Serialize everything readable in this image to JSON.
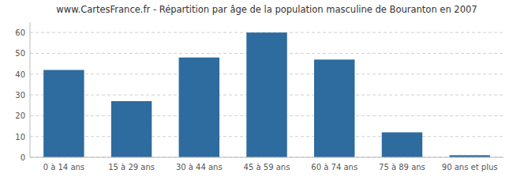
{
  "chart_data": {
    "type": "bar",
    "title": "www.CartesFrance.fr - Répartition par âge de la population masculine de Bouranton en 2007",
    "categories": [
      "0 à 14 ans",
      "15 à 29 ans",
      "30 à 44 ans",
      "45 à 59 ans",
      "60 à 74 ans",
      "75 à 89 ans",
      "90 ans et plus"
    ],
    "values": [
      42,
      27,
      48,
      60,
      47,
      12,
      1
    ],
    "color": "#2e6b9e",
    "ylim": [
      0,
      65
    ],
    "yticks": [
      0,
      10,
      20,
      30,
      40,
      50,
      60
    ],
    "grid": true
  }
}
